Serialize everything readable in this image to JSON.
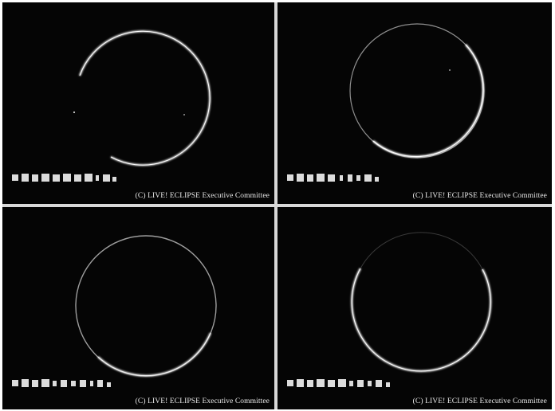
{
  "panels": [
    {
      "id": "eclipse-frame-1",
      "credit": "(C) LIVE! ECLIPSE Executive Committee"
    },
    {
      "id": "eclipse-frame-2",
      "credit": "(C) LIVE! ECLIPSE Executive Committee"
    },
    {
      "id": "eclipse-frame-3",
      "credit": "(C) LIVE! ECLIPSE Executive Committee"
    },
    {
      "id": "eclipse-frame-4",
      "credit": "(C) LIVE! ECLIPSE Executive Committee"
    }
  ],
  "colors": {
    "background": "#050505",
    "divider": "#d8d8d8",
    "corona": "#f2f2f2",
    "text": "#e9e9e9"
  },
  "icons": [
    "eclipse-ring-icon",
    "station-stamp-icon"
  ]
}
